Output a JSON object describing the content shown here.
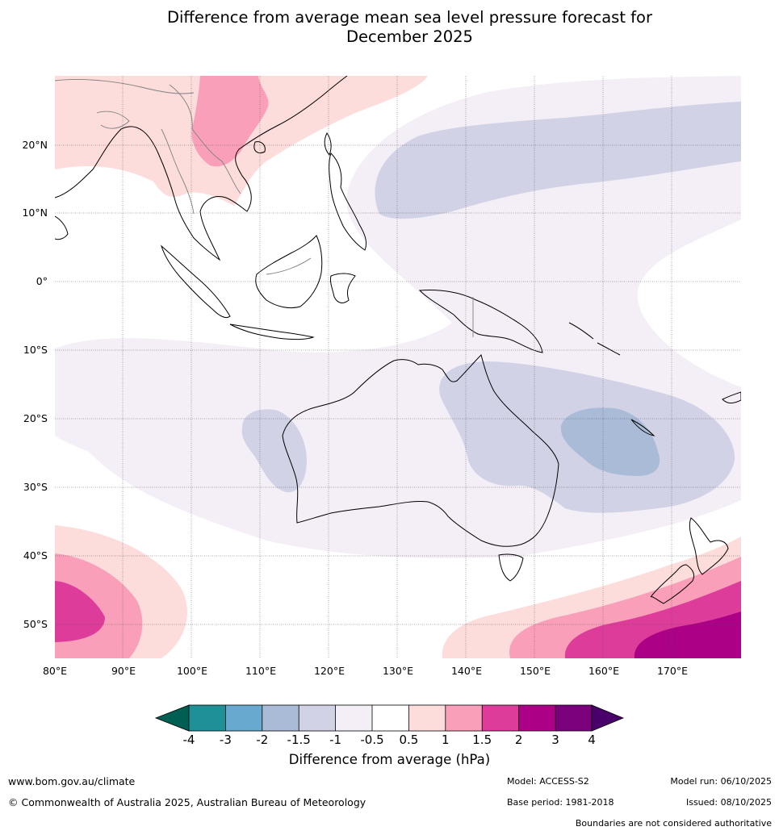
{
  "title": {
    "line1": "Difference from average mean sea level pressure forecast for",
    "line2": "December 2025"
  },
  "map": {
    "lon_labels": [
      "80°E",
      "90°E",
      "100°E",
      "110°E",
      "120°E",
      "130°E",
      "140°E",
      "150°E",
      "160°E",
      "170°E"
    ],
    "lat_labels": [
      "20°N",
      "10°N",
      "0°",
      "10°S",
      "20°S",
      "30°S",
      "40°S",
      "50°S"
    ]
  },
  "colorbar": {
    "title": "Difference from average (hPa)",
    "tick_labels": [
      "-4",
      "-3",
      "-2",
      "-1.5",
      "-1",
      "-0.5",
      "0.5",
      "1",
      "1.5",
      "2",
      "3",
      "4"
    ],
    "colors": {
      "lt_-4": "#005f52",
      "-4_-3": "#1f9095",
      "-3_-2": "#68aacf",
      "-2_-1.5": "#a9bbd7",
      "-1.5_-1": "#d1d2e6",
      "-1_-0.5": "#f4eef6",
      "-0.5_0.5": "#ffffff",
      "0.5_1": "#fddcdc",
      "1_1.5": "#f99fb9",
      "1.5_2": "#de3c9b",
      "2_3": "#ac0186",
      "3_4": "#7a017b",
      "gt_4": "#4a006a"
    }
  },
  "footer": {
    "website": "www.bom.gov.au/climate",
    "copyright": "© Commonwealth of Australia 2025, Australian Bureau of Meteorology",
    "model": "Model: ACCESS-S2",
    "base_period": "Base period: 1981-2018",
    "model_run": "Model run: 06/10/2025",
    "issued": "Issued: 08/10/2025",
    "disclaimer": "Boundaries are not considered authoritative"
  }
}
